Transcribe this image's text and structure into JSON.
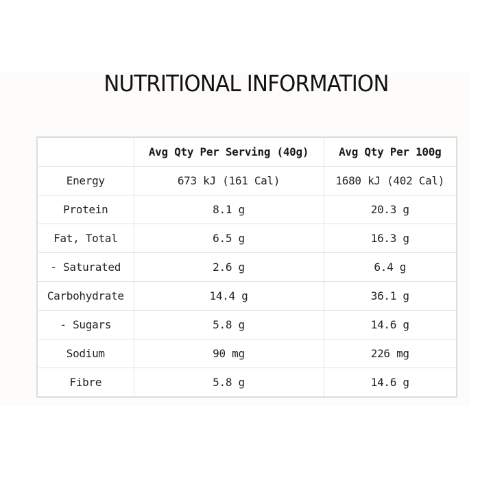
{
  "title": "NUTRITIONAL INFORMATION",
  "table": {
    "headers": [
      "",
      "Avg Qty Per Serving (40g)",
      "Avg Qty Per 100g"
    ],
    "rows": [
      {
        "nutrient": "Energy",
        "per_serving": "673 kJ (161 Cal)",
        "per_100g": "1680 kJ (402 Cal)"
      },
      {
        "nutrient": "Protein",
        "per_serving": "8.1 g",
        "per_100g": "20.3 g"
      },
      {
        "nutrient": "Fat, Total",
        "per_serving": "6.5 g",
        "per_100g": "16.3 g"
      },
      {
        "nutrient": "- Saturated",
        "per_serving": "2.6 g",
        "per_100g": "6.4 g"
      },
      {
        "nutrient": "Carbohydrate",
        "per_serving": "14.4 g",
        "per_100g": "36.1 g"
      },
      {
        "nutrient": "- Sugars",
        "per_serving": "5.8 g",
        "per_100g": "14.6 g"
      },
      {
        "nutrient": "Sodium",
        "per_serving": "90 mg",
        "per_100g": "226 mg"
      },
      {
        "nutrient": "Fibre",
        "per_serving": "5.8 g",
        "per_100g": "14.6 g"
      }
    ]
  },
  "colors": {
    "panel_background": "#fdfcfa",
    "table_background": "#ffffff",
    "border": "#dcdcdc",
    "text": "#222222"
  }
}
